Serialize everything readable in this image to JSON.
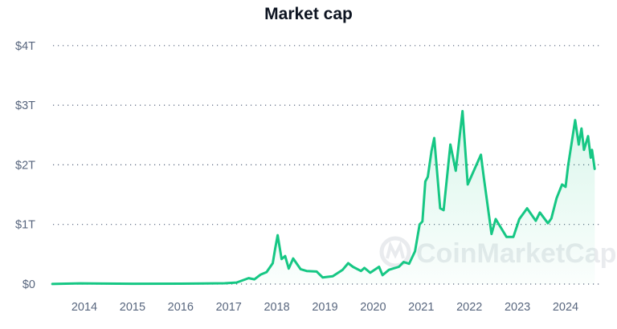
{
  "chart_data": {
    "type": "area",
    "title": "Market cap",
    "xlabel": "",
    "ylabel": "",
    "x_ticks": [
      "2014",
      "2015",
      "2016",
      "2017",
      "2018",
      "2019",
      "2020",
      "2021",
      "2022",
      "2023",
      "2024"
    ],
    "y_ticks": [
      {
        "value": 0,
        "label": "$0"
      },
      {
        "value": 1,
        "label": "$1T"
      },
      {
        "value": 2,
        "label": "$2T"
      },
      {
        "value": 3,
        "label": "$3T"
      },
      {
        "value": 4,
        "label": "$4T"
      }
    ],
    "y_unit": "trillion USD",
    "xlim": [
      "2013-04-28",
      "2024-08-12"
    ],
    "ylim": [
      0,
      4
    ],
    "grid": "horizontal dotted",
    "line_color": "#16c784",
    "watermark": "CoinMarketCap",
    "series": [
      {
        "points": [
          [
            "2013-04-28",
            0.001
          ],
          [
            "2013-12-01",
            0.012
          ],
          [
            "2014-06-01",
            0.008
          ],
          [
            "2015-01-01",
            0.005
          ],
          [
            "2016-01-01",
            0.007
          ],
          [
            "2016-12-01",
            0.014
          ],
          [
            "2017-03-01",
            0.025
          ],
          [
            "2017-06-01",
            0.1
          ],
          [
            "2017-07-15",
            0.08
          ],
          [
            "2017-09-01",
            0.16
          ],
          [
            "2017-10-15",
            0.2
          ],
          [
            "2017-12-01",
            0.35
          ],
          [
            "2017-12-20",
            0.6
          ],
          [
            "2018-01-07",
            0.82
          ],
          [
            "2018-02-06",
            0.42
          ],
          [
            "2018-03-05",
            0.47
          ],
          [
            "2018-04-01",
            0.26
          ],
          [
            "2018-05-05",
            0.43
          ],
          [
            "2018-06-30",
            0.25
          ],
          [
            "2018-08-15",
            0.22
          ],
          [
            "2018-10-30",
            0.21
          ],
          [
            "2018-12-15",
            0.11
          ],
          [
            "2019-03-01",
            0.13
          ],
          [
            "2019-05-15",
            0.24
          ],
          [
            "2019-06-26",
            0.35
          ],
          [
            "2019-08-01",
            0.29
          ],
          [
            "2019-10-01",
            0.22
          ],
          [
            "2019-10-27",
            0.27
          ],
          [
            "2019-12-10",
            0.19
          ],
          [
            "2020-02-15",
            0.29
          ],
          [
            "2020-03-13",
            0.15
          ],
          [
            "2020-05-01",
            0.24
          ],
          [
            "2020-07-15",
            0.29
          ],
          [
            "2020-08-20",
            0.37
          ],
          [
            "2020-10-01",
            0.34
          ],
          [
            "2020-11-15",
            0.55
          ],
          [
            "2020-12-20",
            1.0
          ],
          [
            "2021-01-10",
            1.05
          ],
          [
            "2021-02-01",
            1.72
          ],
          [
            "2021-02-20",
            1.8
          ],
          [
            "2021-03-20",
            2.23
          ],
          [
            "2021-04-10",
            2.45
          ],
          [
            "2021-05-25",
            1.27
          ],
          [
            "2021-06-20",
            1.24
          ],
          [
            "2021-08-10",
            2.34
          ],
          [
            "2021-09-20",
            1.9
          ],
          [
            "2021-11-10",
            2.9
          ],
          [
            "2021-12-20",
            1.67
          ],
          [
            "2022-03-30",
            2.17
          ],
          [
            "2022-04-20",
            1.8
          ],
          [
            "2022-06-18",
            0.84
          ],
          [
            "2022-07-20",
            1.09
          ],
          [
            "2022-10-10",
            0.79
          ],
          [
            "2022-12-01",
            0.79
          ],
          [
            "2023-01-15",
            1.09
          ],
          [
            "2023-03-15",
            1.27
          ],
          [
            "2023-05-20",
            1.06
          ],
          [
            "2023-06-20",
            1.2
          ],
          [
            "2023-08-20",
            1.02
          ],
          [
            "2023-09-15",
            1.1
          ],
          [
            "2023-10-25",
            1.44
          ],
          [
            "2023-12-05",
            1.67
          ],
          [
            "2024-01-01",
            1.63
          ],
          [
            "2024-01-20",
            1.98
          ],
          [
            "2024-03-14",
            2.75
          ],
          [
            "2024-04-10",
            2.34
          ],
          [
            "2024-05-01",
            2.61
          ],
          [
            "2024-05-20",
            2.25
          ],
          [
            "2024-06-20",
            2.48
          ],
          [
            "2024-07-10",
            2.12
          ],
          [
            "2024-07-20",
            2.25
          ],
          [
            "2024-08-10",
            1.92
          ]
        ]
      }
    ]
  }
}
